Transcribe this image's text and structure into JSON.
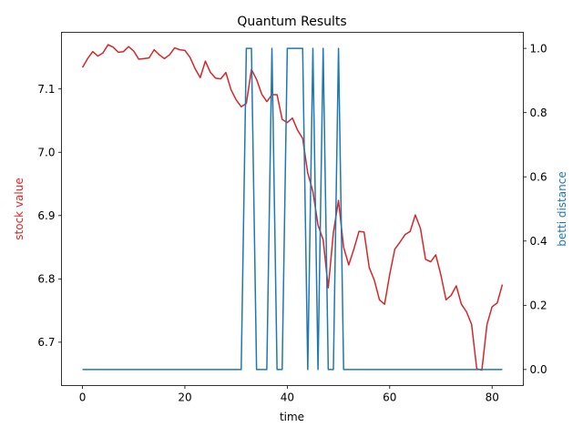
{
  "chart_data": {
    "type": "line",
    "title": "Quantum Results",
    "xlabel": "time",
    "ylabel_left": "stock value",
    "ylabel_right": "betti distance",
    "xlim": [
      -4.1,
      86.1
    ],
    "ylim_left": [
      6.6315,
      7.1895
    ],
    "ylim_right": [
      -0.05,
      1.05
    ],
    "x_ticks": [
      0,
      20,
      40,
      60,
      80
    ],
    "y_ticks_left": [
      6.7,
      6.8,
      6.9,
      7.0,
      7.1
    ],
    "y_ticks_right": [
      0.0,
      0.2,
      0.4,
      0.6,
      0.8,
      1.0
    ],
    "x_tick_labels": [
      "0",
      "20",
      "40",
      "60",
      "80"
    ],
    "y_tick_labels_left": [
      "6.7",
      "6.8",
      "6.9",
      "7.0",
      "7.1"
    ],
    "y_tick_labels_right": [
      "0.0",
      "0.2",
      "0.4",
      "0.6",
      "0.8",
      "1.0"
    ],
    "grid": false,
    "series": [
      {
        "axis": "left",
        "color": "#d62728",
        "x": [
          0,
          1,
          2,
          3,
          4,
          5,
          6,
          7,
          8,
          9,
          10,
          11,
          12,
          13,
          14,
          15,
          16,
          17,
          18,
          19,
          20,
          21,
          22,
          23,
          24,
          25,
          26,
          27,
          28,
          29,
          30,
          31,
          32,
          33,
          34,
          35,
          36,
          37,
          38,
          39,
          40,
          41,
          42,
          43,
          44,
          45,
          46,
          47,
          48,
          49,
          50,
          51,
          52,
          53,
          54,
          55,
          56,
          57,
          58,
          59,
          60,
          61,
          62,
          63,
          64,
          65,
          66,
          67,
          68,
          69,
          70,
          71,
          72,
          73,
          74,
          75,
          76,
          77,
          78,
          79,
          80,
          81,
          82
        ],
        "values": [
          7.134,
          7.148,
          7.159,
          7.152,
          7.157,
          7.17,
          7.166,
          7.158,
          7.159,
          7.167,
          7.16,
          7.147,
          7.148,
          7.149,
          7.162,
          7.154,
          7.148,
          7.154,
          7.165,
          7.162,
          7.161,
          7.15,
          7.132,
          7.118,
          7.144,
          7.126,
          7.117,
          7.116,
          7.126,
          7.099,
          7.083,
          7.072,
          7.077,
          7.131,
          7.115,
          7.092,
          7.08,
          7.091,
          7.091,
          7.052,
          7.047,
          7.054,
          7.035,
          7.022,
          6.967,
          6.938,
          6.885,
          6.862,
          6.786,
          6.873,
          6.924,
          6.85,
          6.822,
          6.847,
          6.875,
          6.874,
          6.818,
          6.798,
          6.767,
          6.76,
          6.807,
          6.847,
          6.858,
          6.87,
          6.875,
          6.901,
          6.88,
          6.831,
          6.827,
          6.838,
          6.806,
          6.767,
          6.774,
          6.789,
          6.76,
          6.748,
          6.728,
          6.658,
          6.656,
          6.728,
          6.756,
          6.762,
          6.791
        ]
      },
      {
        "axis": "right",
        "color": "#1f77b4",
        "x": [
          0,
          1,
          2,
          3,
          4,
          5,
          6,
          7,
          8,
          9,
          10,
          11,
          12,
          13,
          14,
          15,
          16,
          17,
          18,
          19,
          20,
          21,
          22,
          23,
          24,
          25,
          26,
          27,
          28,
          29,
          30,
          31,
          32,
          33,
          34,
          35,
          36,
          37,
          38,
          39,
          40,
          41,
          42,
          43,
          44,
          45,
          46,
          47,
          48,
          49,
          50,
          51,
          52,
          53,
          54,
          55,
          56,
          57,
          58,
          59,
          60,
          61,
          62,
          63,
          64,
          65,
          66,
          67,
          68,
          69,
          70,
          71,
          72,
          73,
          74,
          75,
          76,
          77,
          78,
          79,
          80,
          81,
          82
        ],
        "values": [
          0,
          0,
          0,
          0,
          0,
          0,
          0,
          0,
          0,
          0,
          0,
          0,
          0,
          0,
          0,
          0,
          0,
          0,
          0,
          0,
          0,
          0,
          0,
          0,
          0,
          0,
          0,
          0,
          0,
          0,
          0,
          0,
          1,
          1,
          0,
          0,
          0,
          1,
          0,
          0,
          1,
          1,
          1,
          1,
          0,
          1,
          0,
          1,
          0,
          0,
          1,
          0,
          0,
          0,
          0,
          0,
          0,
          0,
          0,
          0,
          0,
          0,
          0,
          0,
          0,
          0,
          0,
          0,
          0,
          0,
          0,
          0,
          0,
          0,
          0,
          0,
          0,
          0,
          0,
          0,
          0,
          0,
          0
        ]
      }
    ]
  }
}
